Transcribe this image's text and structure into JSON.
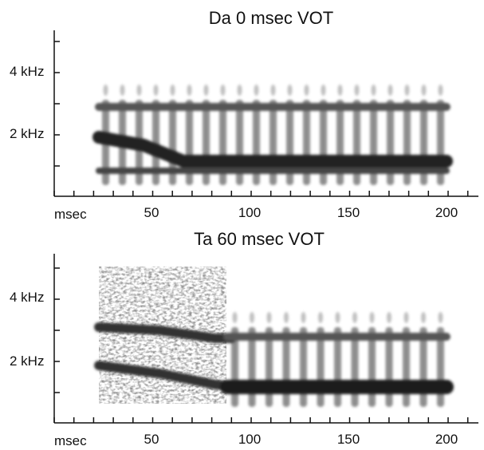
{
  "panels": [
    {
      "title": "Da 0 msec VOT",
      "y_ticks": [
        "4 kHz",
        "2 kHz"
      ],
      "x_unit": "msec",
      "x_ticks": [
        "50",
        "100",
        "150",
        "200"
      ],
      "vot_msec": 0
    },
    {
      "title": "Ta 60 msec VOT",
      "y_ticks": [
        "4 kHz",
        "2 kHz"
      ],
      "x_unit": "msec",
      "x_ticks": [
        "50",
        "100",
        "150",
        "200"
      ],
      "vot_msec": 60
    }
  ]
}
